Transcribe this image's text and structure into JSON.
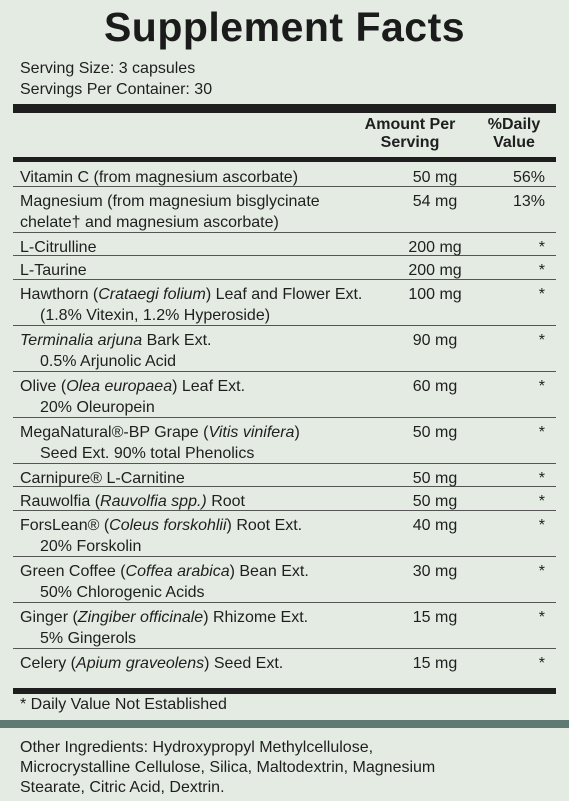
{
  "title": "Supplement Facts",
  "serving_size": "Serving Size: 3 capsules",
  "servings_per_container": "Servings Per Container: 30",
  "columns": {
    "amount_line1": "Amount Per",
    "amount_line2": "Serving",
    "dv_line1": "%Daily",
    "dv_line2": "Value"
  },
  "rows": [
    {
      "line1": [
        {
          "t": "Vitamin C (from magnesium ascorbate)"
        }
      ],
      "line2": [],
      "amount": "50 mg",
      "dv": "56%",
      "indent": false
    },
    {
      "line1": [
        {
          "t": "Magnesium (from magnesium bisglycinate"
        }
      ],
      "line2": [
        {
          "t": "chelate† and magnesium ascorbate)"
        }
      ],
      "amount": "54 mg",
      "dv": "13%",
      "indent": false
    },
    {
      "line1": [
        {
          "t": "L-Citrulline"
        }
      ],
      "line2": [],
      "amount": "200 mg",
      "dv": "*",
      "indent": false
    },
    {
      "line1": [
        {
          "t": "L-Taurine"
        }
      ],
      "line2": [],
      "amount": "200 mg",
      "dv": "*",
      "indent": false
    },
    {
      "line1": [
        {
          "t": "Hawthorn ("
        },
        {
          "t": "Crataegi folium",
          "i": true
        },
        {
          "t": ") Leaf and Flower Ext."
        }
      ],
      "line2": [
        {
          "t": "(1.8% Vitexin, 1.2% Hyperoside)"
        }
      ],
      "amount": "100 mg",
      "dv": "*",
      "indent": true
    },
    {
      "line1": [
        {
          "t": "Terminalia arjuna",
          "i": true
        },
        {
          "t": " Bark Ext."
        }
      ],
      "line2": [
        {
          "t": "0.5% Arjunolic Acid"
        }
      ],
      "amount": "90 mg",
      "dv": "*",
      "indent": true
    },
    {
      "line1": [
        {
          "t": "Olive ("
        },
        {
          "t": "Olea europaea",
          "i": true
        },
        {
          "t": ") Leaf Ext."
        }
      ],
      "line2": [
        {
          "t": "20% Oleuropein"
        }
      ],
      "amount": "60 mg",
      "dv": "*",
      "indent": true
    },
    {
      "line1": [
        {
          "t": "MegaNatural®-BP Grape ("
        },
        {
          "t": "Vitis vinifera",
          "i": true
        },
        {
          "t": ")"
        }
      ],
      "line2": [
        {
          "t": "Seed Ext. 90% total Phenolics"
        }
      ],
      "amount": "50 mg",
      "dv": "*",
      "indent": true
    },
    {
      "line1": [
        {
          "t": "Carnipure® L-Carnitine"
        }
      ],
      "line2": [],
      "amount": "50 mg",
      "dv": "*",
      "indent": false
    },
    {
      "line1": [
        {
          "t": "Rauwolfia ("
        },
        {
          "t": "Rauvolfia spp.)",
          "i": true
        },
        {
          "t": " Root"
        }
      ],
      "line2": [],
      "amount": "50 mg",
      "dv": "*",
      "indent": false
    },
    {
      "line1": [
        {
          "t": "ForsLean® ("
        },
        {
          "t": "Coleus forskohlii",
          "i": true
        },
        {
          "t": ") Root Ext."
        }
      ],
      "line2": [
        {
          "t": "20% Forskolin"
        }
      ],
      "amount": "40 mg",
      "dv": "*",
      "indent": true
    },
    {
      "line1": [
        {
          "t": "Green Coffee ("
        },
        {
          "t": "Coffea arabica",
          "i": true
        },
        {
          "t": ") Bean Ext."
        }
      ],
      "line2": [
        {
          "t": "50% Chlorogenic Acids"
        }
      ],
      "amount": "30 mg",
      "dv": "*",
      "indent": true
    },
    {
      "line1": [
        {
          "t": "Ginger ("
        },
        {
          "t": "Zingiber officinale",
          "i": true
        },
        {
          "t": ") Rhizome Ext."
        }
      ],
      "line2": [
        {
          "t": "5% Gingerols"
        }
      ],
      "amount": "15 mg",
      "dv": "*",
      "indent": true
    },
    {
      "line1": [
        {
          "t": "Celery ("
        },
        {
          "t": "Apium graveolens",
          "i": true
        },
        {
          "t": ") Seed Ext."
        }
      ],
      "line2": [],
      "amount": "15 mg",
      "dv": "*",
      "indent": false
    }
  ],
  "footnote": "* Daily Value Not Established",
  "other_ingredients": [
    "Other Ingredients: Hydroxypropyl Methylcellulose,",
    "Microcrystalline Cellulose, Silica, Maltodextrin, Magnesium",
    "Stearate, Citric Acid, Dextrin."
  ],
  "colors": {
    "background": "#e3ebe3",
    "band": "#5e7a72",
    "text": "#1f1f1f"
  }
}
